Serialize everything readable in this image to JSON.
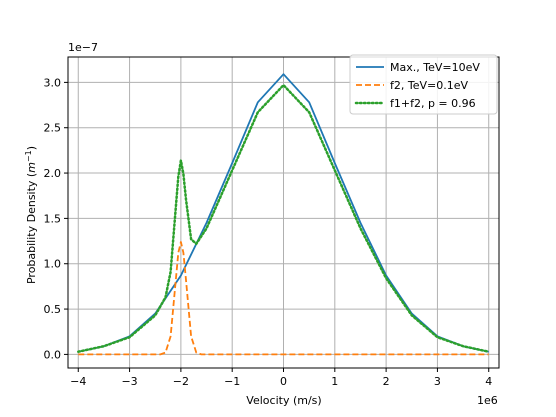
{
  "chart_data": {
    "type": "line",
    "title": "",
    "xlabel": "Velocity (m/s)",
    "ylabel": "Probability Density (m⁻¹)",
    "xlim": [
      -4.2,
      4.2
    ],
    "ylim": [
      -0.15,
      3.28
    ],
    "x_ticks": [
      -4,
      -3,
      -2,
      -1,
      0,
      1,
      2,
      3,
      4
    ],
    "x_tick_labels": [
      "−4",
      "−3",
      "−2",
      "−1",
      "0",
      "1",
      "2",
      "3",
      "4"
    ],
    "y_ticks": [
      0.0,
      0.5,
      1.0,
      1.5,
      2.0,
      2.5,
      3.0
    ],
    "y_tick_labels": [
      "0.0",
      "0.5",
      "1.0",
      "1.5",
      "2.0",
      "2.5",
      "3.0"
    ],
    "x_multiplier": "1e6",
    "y_multiplier": "1e−7",
    "grid": true,
    "legend_position": "top-right",
    "series": [
      {
        "name": "Max., TeV=10eV",
        "color": "#1f77b4",
        "style": "solid",
        "x": [
          -4.0,
          -3.5,
          -3.0,
          -2.5,
          -2.0,
          -1.5,
          -1.0,
          -0.5,
          0.0,
          0.5,
          1.0,
          1.5,
          2.0,
          2.5,
          3.0,
          3.5,
          4.0
        ],
        "values": [
          0.03,
          0.09,
          0.2,
          0.45,
          0.87,
          1.45,
          2.11,
          2.78,
          3.09,
          2.78,
          2.11,
          1.45,
          0.87,
          0.45,
          0.2,
          0.09,
          0.03
        ]
      },
      {
        "name": "f2, TeV=0.1eV",
        "color": "#ff7f0e",
        "style": "dashed",
        "x": [
          -4.0,
          -2.6,
          -2.4,
          -2.3,
          -2.2,
          -2.1,
          -2.05,
          -2.0,
          -1.95,
          -1.9,
          -1.8,
          -1.7,
          -1.6,
          -1.4,
          4.0
        ],
        "values": [
          0.0,
          0.0,
          0.0,
          0.02,
          0.2,
          0.82,
          1.12,
          1.24,
          1.12,
          0.82,
          0.2,
          0.02,
          0.0,
          0.0,
          0.0
        ]
      },
      {
        "name": "f1+f2, p = 0.96",
        "color": "#2ca02c",
        "style": "dotted",
        "x": [
          -4.0,
          -3.5,
          -3.0,
          -2.5,
          -2.3,
          -2.2,
          -2.1,
          -2.05,
          -2.0,
          -1.95,
          -1.9,
          -1.8,
          -1.7,
          -1.5,
          -1.0,
          -0.5,
          0.0,
          0.5,
          1.0,
          1.5,
          2.0,
          2.5,
          3.0,
          3.5,
          4.0
        ],
        "values": [
          0.03,
          0.09,
          0.19,
          0.43,
          0.63,
          0.91,
          1.62,
          1.96,
          2.14,
          1.99,
          1.71,
          1.27,
          1.22,
          1.39,
          2.03,
          2.67,
          2.97,
          2.67,
          2.03,
          1.39,
          0.84,
          0.43,
          0.19,
          0.09,
          0.03
        ]
      }
    ]
  }
}
